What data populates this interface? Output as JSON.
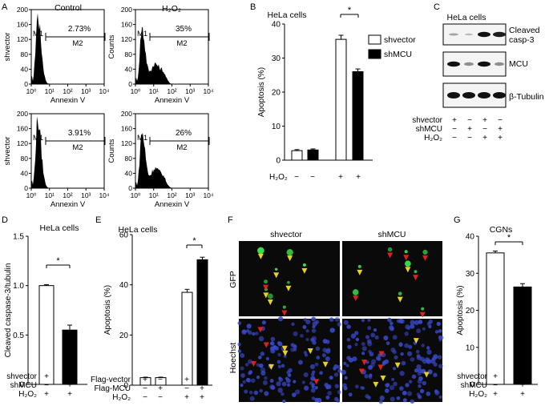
{
  "panel_letters": [
    "A",
    "B",
    "C",
    "D",
    "E",
    "F",
    "G"
  ],
  "flow": {
    "col_titles": [
      "Control",
      "H₂O₂"
    ],
    "ylabel_left": "shvector",
    "ylabel_right": "Counts",
    "xlabel": "Annexin V",
    "m1": "M1",
    "m2": "M2",
    "yticks": [
      "0",
      "40",
      "80",
      "120",
      "160",
      "200"
    ],
    "xticks": [
      "10⁰",
      "10¹",
      "10²",
      "10³",
      "10⁴"
    ],
    "percents": [
      "2.73%",
      "35%",
      "3.91%",
      "26%"
    ]
  },
  "panelB": {
    "title": "HeLa cells",
    "ylabel": "Apoptosis (%)",
    "yticks": [
      "0",
      "10",
      "20",
      "30",
      "40"
    ],
    "legend": [
      "shvector",
      "shMCU"
    ],
    "h2o2_label": "H₂O₂",
    "row_signs": [
      "−",
      "−",
      "+",
      "+"
    ],
    "star": "*"
  },
  "panelC": {
    "title": "HeLa cells",
    "band_labels": [
      "Cleaved\ncasp-3",
      "MCU",
      "β-Tubulin"
    ],
    "row_labels": [
      "shvector",
      "shMCU",
      "H₂O₂"
    ],
    "signs": [
      [
        "+",
        "−",
        "+",
        "−"
      ],
      [
        "−",
        "+",
        "−",
        "+"
      ],
      [
        "−",
        "−",
        "+",
        "+"
      ]
    ]
  },
  "panelD": {
    "title": "HeLa cells",
    "ylabel": "Cleaved caspase-3/tubulin",
    "yticks": [
      "0",
      "0.5",
      "1.0",
      "1.5"
    ],
    "row_labels": [
      "shvector",
      "shMCU",
      "H₂O₂"
    ],
    "signs": [
      [
        "+",
        "−"
      ],
      [
        "−",
        "+"
      ],
      [
        "+",
        "+"
      ]
    ],
    "star": "*"
  },
  "panelE": {
    "title": "HeLa cells",
    "ylabel": "Apoptosis (%)",
    "yticks": [
      "0",
      "20",
      "40",
      "60"
    ],
    "row_labels": [
      "Flag-vector",
      "Flag-MCU",
      "H₂O₂"
    ],
    "signs": [
      [
        "+",
        "−",
        "+",
        "−"
      ],
      [
        "−",
        "+",
        "−",
        "+"
      ],
      [
        "−",
        "−",
        "+",
        "+"
      ]
    ],
    "star": "*"
  },
  "panelF": {
    "col_titles": [
      "shvector",
      "shMCU"
    ],
    "row_titles": [
      "GFP",
      "Hoechst"
    ]
  },
  "panelG": {
    "title": "CGNs",
    "ylabel": "Apoptosis (%)",
    "yticks": [
      "0",
      "10",
      "20",
      "30",
      "40"
    ],
    "row_labels": [
      "shvector",
      "shMCU",
      "H₂O₂"
    ],
    "signs": [
      [
        "+",
        "−"
      ],
      [
        "−",
        "+"
      ],
      [
        "+",
        "+"
      ]
    ],
    "star": "*"
  },
  "chart_data": [
    {
      "type": "bar",
      "panel": "B",
      "title": "HeLa cells",
      "ylabel": "Apoptosis (%)",
      "ylim": [
        0,
        40
      ],
      "categories": [
        "H₂O₂ −",
        "H₂O₂ +"
      ],
      "series": [
        {
          "name": "shvector",
          "values": [
            2.8,
            35.5
          ]
        },
        {
          "name": "shMCU",
          "values": [
            3.0,
            26.0
          ]
        }
      ]
    },
    {
      "type": "bar",
      "panel": "D",
      "title": "HeLa cells",
      "ylabel": "Cleaved caspase-3/tubulin",
      "ylim": [
        0,
        1.5
      ],
      "categories": [
        "shvector + H₂O₂",
        "shMCU + H₂O₂"
      ],
      "values": [
        1.0,
        0.55
      ]
    },
    {
      "type": "bar",
      "panel": "E",
      "title": "HeLa cells",
      "ylabel": "Apoptosis (%)",
      "ylim": [
        0,
        60
      ],
      "categories": [
        "Flag-vector",
        "Flag-MCU",
        "Flag-vector + H₂O₂",
        "Flag-MCU + H₂O₂"
      ],
      "values": [
        3,
        3,
        37,
        50
      ]
    },
    {
      "type": "bar",
      "panel": "G",
      "title": "CGNs",
      "ylabel": "Apoptosis (%)",
      "ylim": [
        0,
        40
      ],
      "categories": [
        "shvector + H₂O₂",
        "shMCU + H₂O₂"
      ],
      "values": [
        35.5,
        26.3
      ]
    }
  ]
}
